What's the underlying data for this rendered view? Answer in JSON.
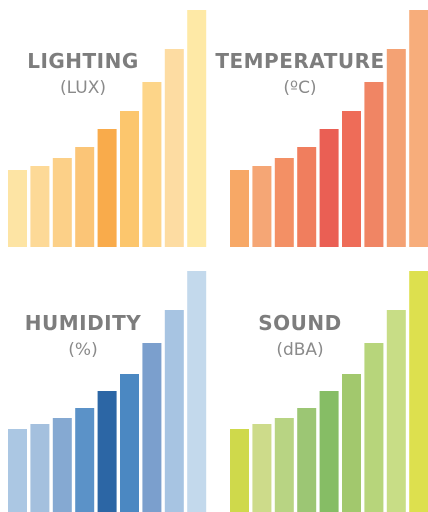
{
  "chart_data": [
    {
      "type": "bar",
      "title": "LIGHTING",
      "subtitle": "(LUX)",
      "values": [
        77,
        81,
        89,
        100,
        118,
        136,
        165,
        198,
        237
      ],
      "ylim": [
        0,
        237
      ],
      "bar_colors": [
        "#fde4a4",
        "#fdd997",
        "#fcd088",
        "#fbc577",
        "#f9ab4b",
        "#fcc66d",
        "#fdd589",
        "#fddca2",
        "#fee9a6"
      ]
    },
    {
      "type": "bar",
      "title": "TEMPERATURE",
      "subtitle": "(ºC)",
      "values": [
        77,
        81,
        89,
        100,
        118,
        136,
        165,
        198,
        237
      ],
      "ylim": [
        0,
        237
      ],
      "bar_colors": [
        "#f7a866",
        "#f5a675",
        "#f39065",
        "#f07e5e",
        "#ea5f54",
        "#ee6c58",
        "#f08564",
        "#f4a274",
        "#f7ad7b"
      ]
    },
    {
      "type": "bar",
      "title": "HUMIDITY",
      "subtitle": "(%)",
      "values": [
        83,
        88,
        94,
        104,
        121,
        138,
        169,
        202,
        241
      ],
      "ylim": [
        0,
        241
      ],
      "bar_colors": [
        "#abc7e3",
        "#a4c0de",
        "#85a9d2",
        "#5b92c8",
        "#2c66a5",
        "#4b88c2",
        "#7b9fcd",
        "#a7c4e2",
        "#c3d9ec"
      ]
    },
    {
      "type": "bar",
      "title": "SOUND",
      "subtitle": "(dBA)",
      "values": [
        83,
        88,
        94,
        104,
        121,
        138,
        169,
        202,
        241
      ],
      "ylim": [
        0,
        241
      ],
      "bar_colors": [
        "#cfd94b",
        "#cddb8a",
        "#b8d483",
        "#9cc674",
        "#86bd65",
        "#a2c86d",
        "#b7d57b",
        "#c8dd86",
        "#dde04e"
      ]
    }
  ]
}
